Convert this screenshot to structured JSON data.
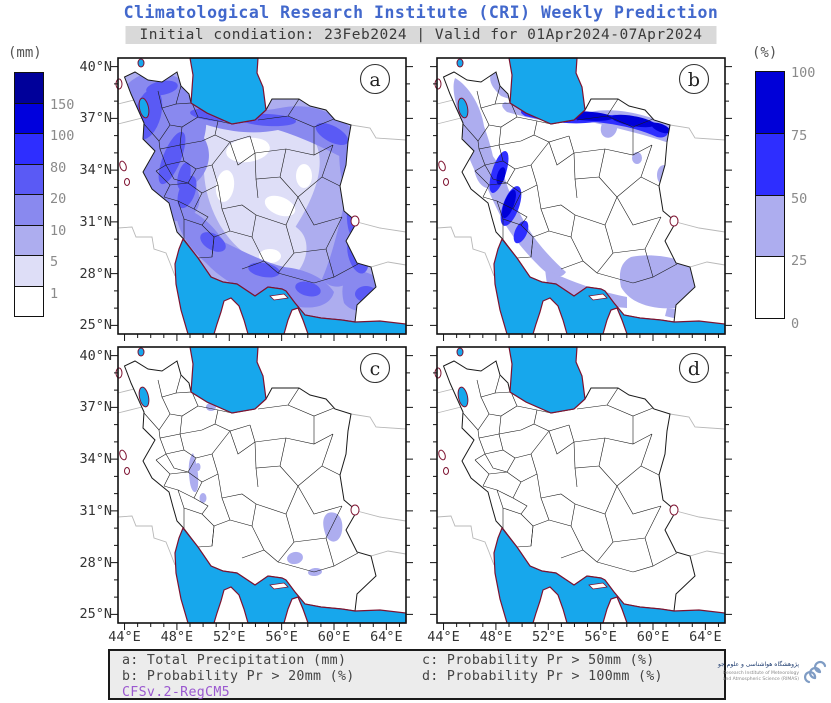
{
  "title": "Climatological Research Institute (CRI) Weekly Prediction",
  "subtitle": "Initial condiation: 23Feb2024 | Valid for 01Apr2024-07Apr2024",
  "colorbar_left": {
    "unit": "(mm)",
    "labels": [
      "150",
      "100",
      "80",
      "20",
      "10",
      "5",
      "1"
    ],
    "colors": [
      "#00009a",
      "#0000dd",
      "#2e2eff",
      "#5a5af5",
      "#8989ef",
      "#adadef",
      "#dedef7",
      "#ffffff"
    ]
  },
  "colorbar_right": {
    "unit": "(%)",
    "labels": [
      "100",
      "75",
      "50",
      "25",
      "0"
    ],
    "colors": [
      "#0000d8",
      "#2e2eff",
      "#adadef",
      "#ffffff"
    ]
  },
  "axes": {
    "lat_labels": [
      "40°N",
      "37°N",
      "34°N",
      "31°N",
      "28°N",
      "25°N"
    ],
    "lat_values": [
      40,
      37,
      34,
      31,
      28,
      25
    ],
    "lon_labels": [
      "44°E",
      "48°E",
      "52°E",
      "56°E",
      "60°E",
      "64°E"
    ],
    "lon_values": [
      44,
      48,
      52,
      56,
      60,
      64
    ]
  },
  "panels": [
    {
      "letter": "a"
    },
    {
      "letter": "b"
    },
    {
      "letter": "c"
    },
    {
      "letter": "d"
    }
  ],
  "legend": {
    "items": [
      "a: Total Precipitation (mm)",
      "b: Probability Pr > 20mm (%)",
      "c: Probability Pr > 50mm (%)",
      "d: Probability Pr > 100mm (%)"
    ],
    "model": "CFSv.2-RegCM5"
  },
  "logo": {
    "line_fa": "پژوهشگاه هواشناسی و علوم جو",
    "line_en1": "Research Institute of Meteorology",
    "line_en2": "and Atmospheric Science (RIMAS)"
  },
  "colors": {
    "title": "#4268cc",
    "sea": "#17a7ec",
    "coast": "#7d1230",
    "model_label": "#9b59d0",
    "border": "#1a1a1a",
    "neighbor": "#b8b8b8"
  }
}
